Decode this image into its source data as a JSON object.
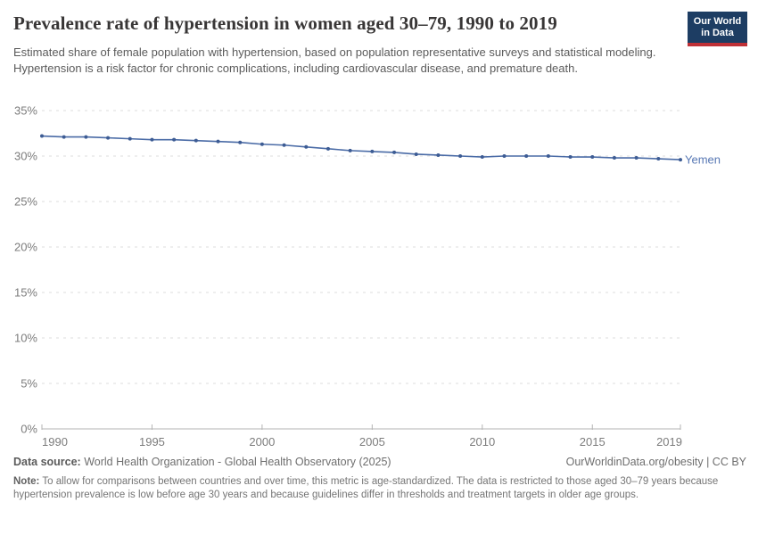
{
  "chart_data": {
    "type": "line",
    "title": "Prevalence rate of hypertension in women aged 30–79, 1990 to 2019",
    "subtitle": "Estimated share of female population with hypertension, based on population representative surveys and statistical modeling. Hypertension is a risk factor for chronic complications, including cardiovascular disease, and premature death.",
    "x": [
      1990,
      1991,
      1992,
      1993,
      1994,
      1995,
      1996,
      1997,
      1998,
      1999,
      2000,
      2001,
      2002,
      2003,
      2004,
      2005,
      2006,
      2007,
      2008,
      2009,
      2010,
      2011,
      2012,
      2013,
      2014,
      2015,
      2016,
      2017,
      2018,
      2019
    ],
    "series": [
      {
        "name": "Yemen",
        "values": [
          32.2,
          32.1,
          32.1,
          32.0,
          31.9,
          31.8,
          31.8,
          31.7,
          31.6,
          31.5,
          31.3,
          31.2,
          31.0,
          30.8,
          30.6,
          30.5,
          30.4,
          30.2,
          30.1,
          30.0,
          29.9,
          30.0,
          30.0,
          30.0,
          29.9,
          29.9,
          29.8,
          29.8,
          29.7,
          29.6
        ]
      }
    ],
    "end_label": "Yemen",
    "xlabel": "",
    "ylabel": "",
    "ylim": [
      0,
      35
    ],
    "yticks": [
      0,
      5,
      10,
      15,
      20,
      25,
      30,
      35
    ],
    "ytick_suffix": "%",
    "xticks": [
      1990,
      1995,
      2000,
      2005,
      2010,
      2015,
      2019
    ],
    "grid": "horizontal-dashed",
    "legend": "end-of-line-label"
  },
  "logo": {
    "line1": "Our World",
    "line2": "in Data"
  },
  "footer": {
    "data_source_label": "Data source:",
    "data_source": "World Health Organization - Global Health Observatory (2025)",
    "license": "OurWorldinData.org/obesity | CC BY",
    "note_label": "Note:",
    "note": "To allow for comparisons between countries and over time, this metric is age-standardized. The data is restricted to those aged 30–79 years because hypertension prevalence is low before age 30 years and because guidelines differ in thresholds and treatment targets in older age groups."
  },
  "colors": {
    "line": "#4a6ba6",
    "point": "#3d5c94",
    "end_label": "#5878b4",
    "grid": "#dedede",
    "axis": "#b3b3b3",
    "tick_text": "#7c7c7c",
    "logo_bg": "#1d3d63",
    "logo_accent": "#bf3036"
  }
}
